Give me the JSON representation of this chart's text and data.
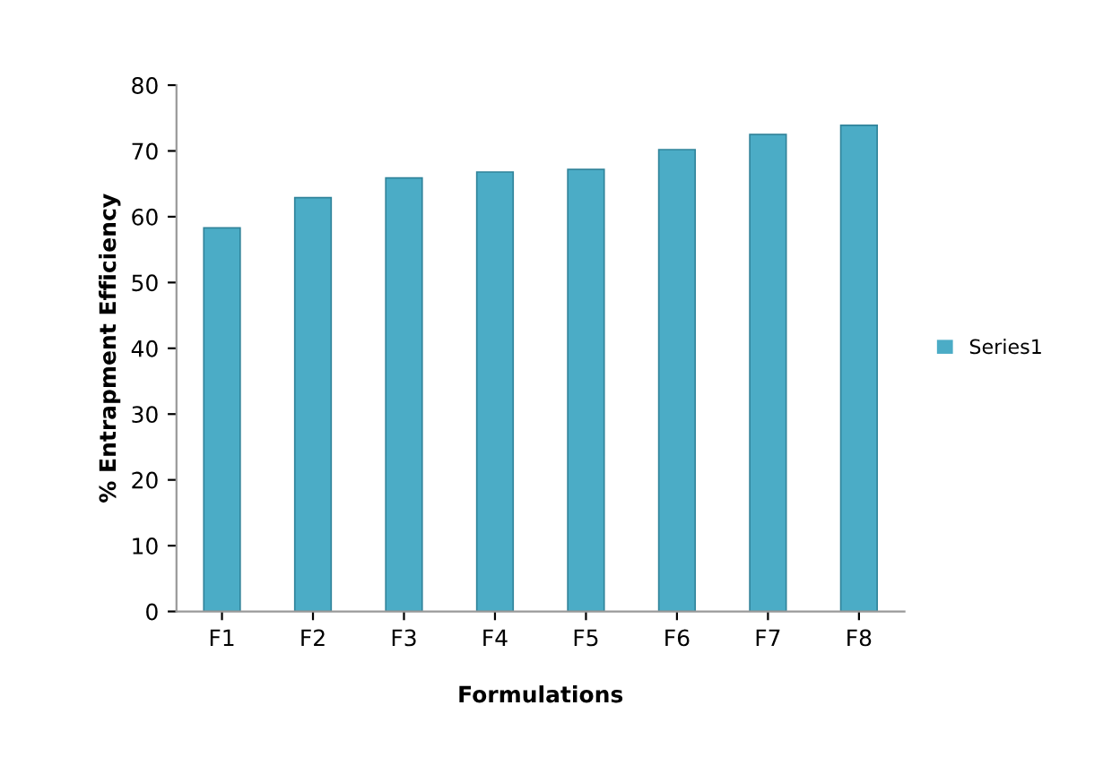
{
  "chart_data": {
    "type": "bar",
    "xlabel": "Formulations",
    "ylabel": "% Entrapment Efficiency",
    "categories": [
      "F1",
      "F2",
      "F3",
      "F4",
      "F5",
      "F6",
      "F7",
      "F8"
    ],
    "series": [
      {
        "name": "Series1",
        "color": "#4bacc6",
        "values": [
          58.3,
          62.9,
          65.9,
          66.8,
          67.2,
          70.2,
          72.5,
          73.9
        ]
      }
    ],
    "ylim": [
      0,
      80
    ],
    "yticks": [
      0,
      10,
      20,
      30,
      40,
      50,
      60,
      70,
      80
    ],
    "grid": false,
    "legend": "right"
  }
}
